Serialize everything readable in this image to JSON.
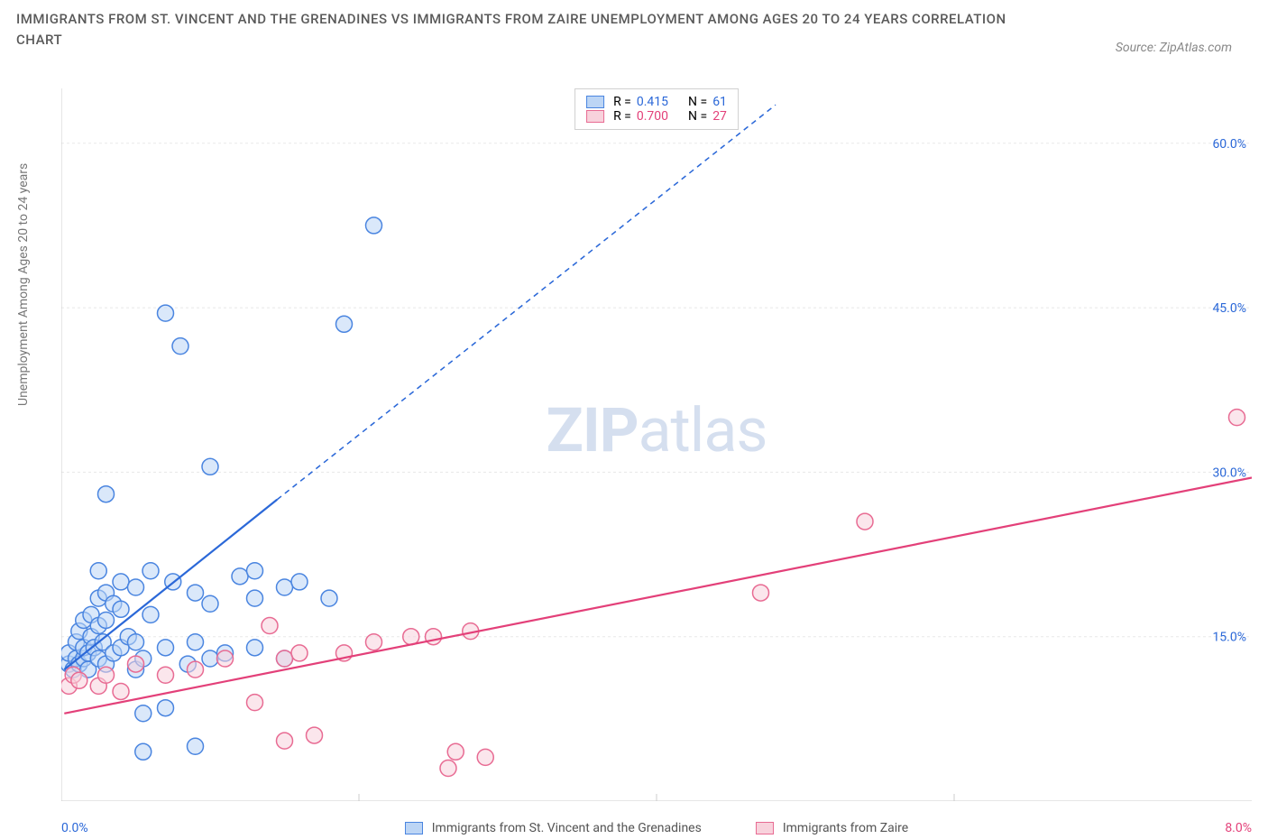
{
  "title": "IMMIGRANTS FROM ST. VINCENT AND THE GRENADINES VS IMMIGRANTS FROM ZAIRE UNEMPLOYMENT AMONG AGES 20 TO 24 YEARS CORRELATION CHART",
  "source": "Source: ZipAtlas.com",
  "y_axis_label": "Unemployment Among Ages 20 to 24 years",
  "watermark_bold": "ZIP",
  "watermark_rest": "atlas",
  "legend_top": {
    "series1": {
      "swatch_fill": "#bcd5f5",
      "swatch_border": "#4a85e0",
      "r_label": "R =",
      "r_value": "0.415",
      "r_color": "#2b68d8",
      "n_label": "N =",
      "n_value": "61",
      "n_color": "#2b68d8"
    },
    "series2": {
      "swatch_fill": "#f8d2dc",
      "swatch_border": "#e86b93",
      "r_label": "R =",
      "r_value": "0.700",
      "r_color": "#e34079",
      "n_label": "N =",
      "n_value": "27",
      "n_color": "#e34079"
    }
  },
  "legend_bottom": {
    "series1": {
      "label": "Immigrants from St. Vincent and the Grenadines",
      "swatch_fill": "#bcd5f5",
      "swatch_border": "#4a85e0"
    },
    "series2": {
      "label": "Immigrants from Zaire",
      "swatch_fill": "#f8d2dc",
      "swatch_border": "#e86b93"
    }
  },
  "x_axis": {
    "origin": "0.0%",
    "origin_color": "#2b68d8",
    "max": "8.0%",
    "max_color": "#e34079",
    "range": [
      0,
      8
    ],
    "ticks": [
      2,
      4,
      6
    ]
  },
  "y_axis": {
    "range": [
      0,
      65
    ],
    "ticks": [
      {
        "v": 15,
        "label": "15.0%"
      },
      {
        "v": 30,
        "label": "30.0%"
      },
      {
        "v": 45,
        "label": "45.0%"
      },
      {
        "v": 60,
        "label": "60.0%"
      }
    ],
    "tick_color": "#2b68d8"
  },
  "grid_color": "#e8e8e8",
  "axis_color": "#cccccc",
  "chart": {
    "type": "scatter",
    "marker_radius": 9,
    "marker_stroke_width": 1.5,
    "series": [
      {
        "name": "St. Vincent",
        "fill": "#bcd5f5",
        "fill_opacity": 0.55,
        "stroke": "#4a85e0",
        "points": [
          [
            0.05,
            12.5
          ],
          [
            0.05,
            13.5
          ],
          [
            0.08,
            12.0
          ],
          [
            0.1,
            13.0
          ],
          [
            0.1,
            14.5
          ],
          [
            0.12,
            12.5
          ],
          [
            0.12,
            15.5
          ],
          [
            0.15,
            13.0
          ],
          [
            0.15,
            14.0
          ],
          [
            0.15,
            16.5
          ],
          [
            0.18,
            12.0
          ],
          [
            0.18,
            13.5
          ],
          [
            0.2,
            15.0
          ],
          [
            0.2,
            17.0
          ],
          [
            0.22,
            14.0
          ],
          [
            0.25,
            13.0
          ],
          [
            0.25,
            16.0
          ],
          [
            0.25,
            18.5
          ],
          [
            0.25,
            21.0
          ],
          [
            0.28,
            14.5
          ],
          [
            0.3,
            12.5
          ],
          [
            0.3,
            16.5
          ],
          [
            0.3,
            19.0
          ],
          [
            0.3,
            28.0
          ],
          [
            0.35,
            13.5
          ],
          [
            0.35,
            18.0
          ],
          [
            0.4,
            14.0
          ],
          [
            0.4,
            17.5
          ],
          [
            0.4,
            20.0
          ],
          [
            0.45,
            15.0
          ],
          [
            0.5,
            12.0
          ],
          [
            0.5,
            14.5
          ],
          [
            0.5,
            19.5
          ],
          [
            0.55,
            4.5
          ],
          [
            0.55,
            8.0
          ],
          [
            0.55,
            13.0
          ],
          [
            0.6,
            17.0
          ],
          [
            0.6,
            21.0
          ],
          [
            0.7,
            8.5
          ],
          [
            0.7,
            14.0
          ],
          [
            0.7,
            44.5
          ],
          [
            0.75,
            20.0
          ],
          [
            0.8,
            41.5
          ],
          [
            0.85,
            12.5
          ],
          [
            0.9,
            5.0
          ],
          [
            0.9,
            14.5
          ],
          [
            0.9,
            19.0
          ],
          [
            1.0,
            13.0
          ],
          [
            1.0,
            18.0
          ],
          [
            1.0,
            30.5
          ],
          [
            1.1,
            13.5
          ],
          [
            1.2,
            20.5
          ],
          [
            1.3,
            14.0
          ],
          [
            1.3,
            18.5
          ],
          [
            1.3,
            21.0
          ],
          [
            1.5,
            13.0
          ],
          [
            1.5,
            19.5
          ],
          [
            1.6,
            20.0
          ],
          [
            1.8,
            18.5
          ],
          [
            1.9,
            43.5
          ],
          [
            2.1,
            52.5
          ]
        ],
        "trend": {
          "solid_from": [
            0.02,
            12.0
          ],
          "solid_to": [
            1.45,
            27.5
          ],
          "dashed_to": [
            4.8,
            63.5
          ],
          "color": "#2b68d8",
          "width": 2.2
        }
      },
      {
        "name": "Zaire",
        "fill": "#f8d2dc",
        "fill_opacity": 0.55,
        "stroke": "#e86b93",
        "points": [
          [
            0.05,
            10.5
          ],
          [
            0.08,
            11.5
          ],
          [
            0.12,
            11.0
          ],
          [
            0.25,
            10.5
          ],
          [
            0.3,
            11.5
          ],
          [
            0.4,
            10.0
          ],
          [
            0.5,
            12.5
          ],
          [
            0.7,
            11.5
          ],
          [
            0.9,
            12.0
          ],
          [
            1.1,
            13.0
          ],
          [
            1.3,
            9.0
          ],
          [
            1.4,
            16.0
          ],
          [
            1.5,
            5.5
          ],
          [
            1.5,
            13.0
          ],
          [
            1.6,
            13.5
          ],
          [
            1.7,
            6.0
          ],
          [
            1.9,
            13.5
          ],
          [
            2.1,
            14.5
          ],
          [
            2.35,
            15.0
          ],
          [
            2.5,
            15.0
          ],
          [
            2.6,
            3.0
          ],
          [
            2.65,
            4.5
          ],
          [
            2.75,
            15.5
          ],
          [
            2.85,
            4.0
          ],
          [
            4.7,
            19.0
          ],
          [
            5.4,
            25.5
          ],
          [
            7.9,
            35.0
          ]
        ],
        "trend": {
          "solid_from": [
            0.02,
            8.0
          ],
          "solid_to": [
            8.0,
            29.5
          ],
          "color": "#e34079",
          "width": 2.2
        }
      }
    ]
  }
}
